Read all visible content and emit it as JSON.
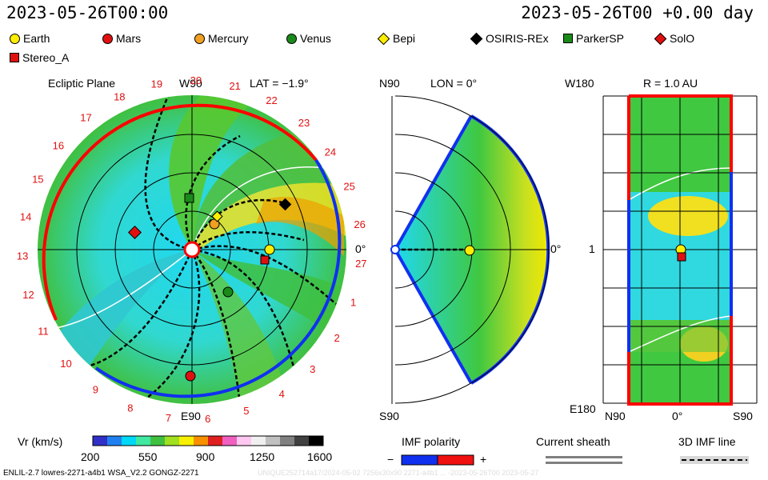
{
  "header": {
    "date_left": "2023-05-26T00:00",
    "date_right": "2023-05-26T00 +0.00 day"
  },
  "legend": [
    {
      "label": "Earth",
      "shape": "circle",
      "color": "#ffee00"
    },
    {
      "label": "Mars",
      "shape": "circle",
      "color": "#e01010"
    },
    {
      "label": "Mercury",
      "shape": "circle",
      "color": "#f0a020"
    },
    {
      "label": "Venus",
      "shape": "circle",
      "color": "#1a8a1a"
    },
    {
      "label": "Bepi",
      "shape": "diamond",
      "color": "#ffee00"
    },
    {
      "label": "OSIRIS-REx",
      "shape": "diamond",
      "color": "#000000"
    },
    {
      "label": "ParkerSP",
      "shape": "square",
      "color": "#1a8a1a"
    },
    {
      "label": "SolO",
      "shape": "diamond",
      "color": "#e01010"
    },
    {
      "label": "Stereo_A",
      "shape": "square",
      "color": "#e01010"
    }
  ],
  "ecliptic": {
    "title": "Ecliptic Plane",
    "top_label": "W90",
    "lat_label": "LAT = −1.9°",
    "right_label": "0°",
    "bottom_label": "E90",
    "sector_numbers": [
      "19",
      "20",
      "21",
      "22",
      "23",
      "24",
      "25",
      "26",
      "27",
      "1",
      "2",
      "3",
      "4",
      "5",
      "6",
      "7",
      "8",
      "9",
      "10",
      "11",
      "12",
      "13",
      "14",
      "15",
      "16",
      "17",
      "18"
    ]
  },
  "meridional": {
    "top_label": "N90",
    "lon_label": "LON = 0°",
    "right_label": "0°",
    "bottom_label": "S90"
  },
  "map": {
    "top_label": "W180",
    "r_label": "R = 1.0 AU",
    "left_mid_label": "1",
    "bottom_left_label": "E180",
    "x_labels": [
      "N90",
      "0°",
      "S90"
    ]
  },
  "colorbar": {
    "title": "Vr (km/s)",
    "ticks": [
      "200",
      "550",
      "900",
      "1250",
      "1600"
    ],
    "colors": [
      "#3030c8",
      "#2080f0",
      "#00d8f8",
      "#40e8a0",
      "#40c040",
      "#a0e020",
      "#f8f000",
      "#f89000",
      "#e02020",
      "#f060c0",
      "#ffc8f0",
      "#f0f0f0",
      "#c0c0c0",
      "#808080",
      "#404040",
      "#000000"
    ]
  },
  "imf": {
    "title": "IMF polarity",
    "minus": "−",
    "plus": "+"
  },
  "sheath": {
    "title": "Current sheath"
  },
  "imf_line": {
    "title": "3D IMF line"
  },
  "footer": {
    "left": "ENLIL-2.7 lowres-2271-a4b1 WSA_V2.2 GONGZ-2271",
    "right": "UNIQUE252714a17/2024-05-02 7256x30x90 2271-a4b1 ... -2023-05-26T00 2023-05-27"
  }
}
